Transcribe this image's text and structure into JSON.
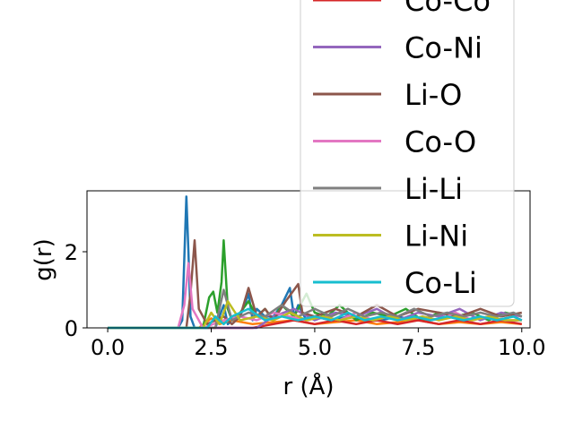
{
  "chart_data": {
    "type": "line",
    "xlabel": "r (Å)",
    "ylabel": "g(r)",
    "xlim": [
      -0.5,
      10.2
    ],
    "ylim": [
      0,
      3.6
    ],
    "xticks": [
      "0.0",
      "2.5",
      "5.0",
      "7.5",
      "10.0"
    ],
    "xtick_values": [
      0,
      2.5,
      5,
      7.5,
      10
    ],
    "yticks": [
      "0",
      "2"
    ],
    "ytick_values": [
      0,
      2
    ],
    "legend_placement": "upper-right",
    "series": [
      {
        "name": "",
        "color": "#1f77b4",
        "x": [
          0,
          1.7,
          1.8,
          1.9,
          1.95,
          2.0,
          2.1,
          2.6,
          2.8,
          2.9,
          3.0,
          3.2,
          3.4,
          3.5,
          3.6,
          3.8,
          4.0,
          4.2,
          4.4,
          4.5,
          4.6,
          4.8,
          5.0,
          5.4,
          5.8,
          6.2,
          6.6,
          7.0,
          7.4,
          7.8,
          8.2,
          8.6,
          9.0,
          9.4,
          9.8,
          10.0
        ],
        "y": [
          0,
          0,
          0.2,
          3.45,
          2.0,
          0.3,
          0,
          0,
          0.6,
          0.1,
          0.2,
          0.3,
          0.9,
          0.2,
          0.5,
          0.3,
          0.3,
          0.6,
          1.05,
          0.3,
          0.6,
          0.2,
          0.3,
          0.2,
          0.3,
          0.2,
          0.2,
          0.3,
          0.2,
          0.2,
          0.3,
          0.2,
          0.3,
          0.2,
          0.3,
          0.2
        ]
      },
      {
        "name": "",
        "color": "#ff7f0e",
        "x": [
          0,
          2.2,
          2.5,
          2.7,
          3.0,
          3.5,
          4.0,
          4.5,
          5.0,
          5.5,
          6.0,
          6.5,
          7.0,
          7.5,
          8.0,
          8.5,
          9.0,
          9.5,
          10.0
        ],
        "y": [
          0,
          0,
          0.25,
          0.1,
          0.2,
          0.1,
          0.15,
          0.2,
          0.1,
          0.15,
          0.2,
          0.1,
          0.15,
          0.2,
          0.1,
          0.15,
          0.1,
          0.15,
          0.1
        ]
      },
      {
        "name": "",
        "color": "#2ca02c",
        "x": [
          0,
          2.3,
          2.45,
          2.55,
          2.65,
          2.75,
          2.8,
          2.9,
          3.0,
          3.2,
          3.4,
          3.6,
          3.8,
          4.0,
          4.2,
          4.5,
          4.8,
          5.0,
          5.3,
          5.6,
          6.0,
          6.4,
          6.8,
          7.2,
          7.6,
          8.0,
          8.4,
          8.8,
          9.2,
          9.6,
          10.0
        ],
        "y": [
          0,
          0,
          0.8,
          0.95,
          0.4,
          1.2,
          2.3,
          0.5,
          0.2,
          0.4,
          0.7,
          0.3,
          0.5,
          0.2,
          0.6,
          0.3,
          0.9,
          0.4,
          0.3,
          0.6,
          0.2,
          0.4,
          0.3,
          0.5,
          0.2,
          0.4,
          0.3,
          0.4,
          0.2,
          0.4,
          0.3
        ]
      },
      {
        "name": "Co-Co",
        "color": "#d62728",
        "x": [
          0,
          3.5,
          4.0,
          4.5,
          5.0,
          5.5,
          6.0,
          6.5,
          7.0,
          7.5,
          8.0,
          8.5,
          9.0,
          9.5,
          10.0
        ],
        "y": [
          0,
          0,
          0.1,
          0.2,
          0.1,
          0.2,
          0.1,
          0.2,
          0.1,
          0.2,
          0.1,
          0.2,
          0.1,
          0.2,
          0.1
        ]
      },
      {
        "name": "Co-Ni",
        "color": "#9467bd",
        "x": [
          0,
          3.6,
          4.0,
          4.5,
          5.0,
          5.5,
          6.0,
          6.5,
          7.0,
          7.5,
          8.0,
          8.5,
          9.0,
          9.5,
          10.0
        ],
        "y": [
          0,
          0,
          0.3,
          0.5,
          0.2,
          0.4,
          0.3,
          0.5,
          0.2,
          0.4,
          0.3,
          0.5,
          0.2,
          0.4,
          0.3
        ]
      },
      {
        "name": "Li-O",
        "color": "#8c564b",
        "x": [
          0,
          1.9,
          2.0,
          2.1,
          2.2,
          2.4,
          2.8,
          3.0,
          3.2,
          3.4,
          3.6,
          3.8,
          4.0,
          4.3,
          4.6,
          4.7,
          5.0,
          5.5,
          6.0,
          6.5,
          7.0,
          7.5,
          8.0,
          8.5,
          9.0,
          9.5,
          10.0
        ],
        "y": [
          0,
          0,
          0.9,
          2.3,
          0.5,
          0.1,
          0.3,
          0.1,
          0.3,
          1.05,
          0.3,
          0.5,
          0.2,
          0.7,
          1.15,
          0.4,
          0.3,
          0.5,
          0.3,
          0.6,
          0.3,
          0.5,
          0.4,
          0.3,
          0.5,
          0.3,
          0.4
        ]
      },
      {
        "name": "Co-O",
        "color": "#e377c2",
        "x": [
          0,
          1.7,
          1.85,
          1.95,
          2.05,
          2.3,
          2.8,
          3.2,
          3.6,
          4.0,
          4.4,
          4.8,
          5.2,
          5.6,
          6.0,
          6.4,
          6.8,
          7.2,
          7.6,
          8.0,
          8.4,
          8.8,
          9.2,
          9.6,
          10.0
        ],
        "y": [
          0,
          0,
          0.6,
          1.7,
          0.5,
          0,
          0.2,
          0.3,
          0.2,
          0.4,
          0.3,
          0.2,
          0.3,
          0.2,
          0.4,
          0.2,
          0.3,
          0.2,
          0.3,
          0.2,
          0.4,
          0.2,
          0.3,
          0.2,
          0.2
        ]
      },
      {
        "name": "Li-Li",
        "color": "#7f7f7f",
        "x": [
          0,
          2.6,
          2.8,
          3.0,
          3.4,
          3.8,
          4.2,
          4.6,
          5.0,
          5.4,
          5.8,
          6.2,
          6.6,
          7.0,
          7.4,
          7.8,
          8.2,
          8.6,
          9.0,
          9.4,
          9.8,
          10.0
        ],
        "y": [
          0,
          0,
          1.0,
          0.2,
          0.4,
          0.3,
          0.6,
          0.3,
          0.5,
          0.3,
          0.5,
          0.3,
          0.4,
          0.3,
          0.5,
          0.3,
          0.4,
          0.3,
          0.4,
          0.3,
          0.4,
          0.3
        ]
      },
      {
        "name": "Li-Ni",
        "color": "#bcbd22",
        "x": [
          0,
          2.3,
          2.5,
          2.7,
          2.9,
          3.2,
          3.6,
          4.0,
          4.4,
          4.8,
          5.2,
          5.6,
          6.0,
          6.4,
          6.8,
          7.2,
          7.6,
          8.0,
          8.4,
          8.8,
          9.2,
          9.6,
          10.0
        ],
        "y": [
          0,
          0,
          0.4,
          0.1,
          0.7,
          0.2,
          0.3,
          0.2,
          0.4,
          0.2,
          0.3,
          0.2,
          0.3,
          0.2,
          0.3,
          0.2,
          0.3,
          0.2,
          0.3,
          0.2,
          0.3,
          0.2,
          0.2
        ]
      },
      {
        "name": "Co-Li",
        "color": "#17becf",
        "x": [
          0,
          2.4,
          2.6,
          2.8,
          3.0,
          3.4,
          3.8,
          4.2,
          4.6,
          5.0,
          5.4,
          5.8,
          6.2,
          6.6,
          7.0,
          7.4,
          7.8,
          8.2,
          8.6,
          9.0,
          9.4,
          9.8,
          10.0
        ],
        "y": [
          0,
          0,
          0.3,
          0.1,
          0.3,
          0.5,
          0.2,
          0.3,
          0.2,
          0.3,
          0.2,
          0.4,
          0.2,
          0.3,
          0.2,
          0.3,
          0.2,
          0.3,
          0.2,
          0.3,
          0.2,
          0.3,
          0.2
        ]
      }
    ],
    "legend": [
      {
        "label": "Co-Co",
        "color": "#d62728"
      },
      {
        "label": "Co-Ni",
        "color": "#9467bd"
      },
      {
        "label": "Li-O",
        "color": "#8c564b"
      },
      {
        "label": "Co-O",
        "color": "#e377c2"
      },
      {
        "label": "Li-Li",
        "color": "#7f7f7f"
      },
      {
        "label": "Li-Ni",
        "color": "#bcbd22"
      },
      {
        "label": "Co-Li",
        "color": "#17becf"
      }
    ]
  }
}
